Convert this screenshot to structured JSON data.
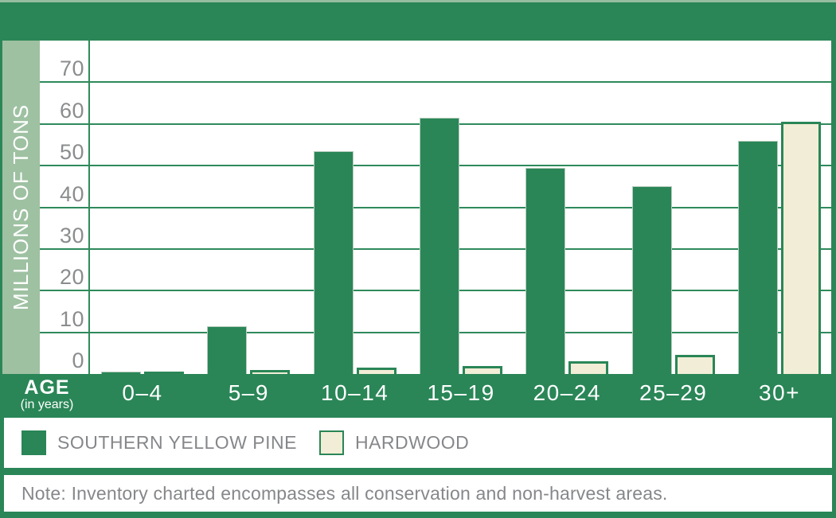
{
  "colors": {
    "dark_green": "#2a8657",
    "gridline_green": "#2f8a5c",
    "sage_band": "#9ec1a2",
    "cream": "#f2edd6",
    "gray_text": "#85878a",
    "white": "#ffffff"
  },
  "y_axis": {
    "label": "MILLIONS OF TONS",
    "ticks": [
      "0",
      "10",
      "20",
      "30",
      "40",
      "50",
      "60",
      "70"
    ]
  },
  "x_axis": {
    "label": "AGE",
    "sublabel": "(in years)"
  },
  "legend": [
    {
      "label": "SOUTHERN YELLOW PINE",
      "color": "#2a8657"
    },
    {
      "label": "HARDWOOD",
      "color": "#f2edd6"
    }
  ],
  "note": "Note: Inventory charted encompasses all conservation and non-harvest areas.",
  "chart_data": {
    "type": "bar",
    "categories": [
      "0–4",
      "5–9",
      "10–14",
      "15–19",
      "20–24",
      "25–29",
      "30+"
    ],
    "series": [
      {
        "name": "SOUTHERN YELLOW PINE",
        "color": "#2a8657",
        "values": [
          0.5,
          11.5,
          53.5,
          61.5,
          49.5,
          45,
          56
        ]
      },
      {
        "name": "HARDWOOD",
        "color": "#f2edd6",
        "values": [
          0.5,
          1,
          1.5,
          2,
          3,
          4.5,
          60.5
        ]
      }
    ],
    "title": "",
    "xlabel": "AGE (in years)",
    "ylabel": "MILLIONS OF TONS",
    "ylim": [
      0,
      80
    ],
    "yticks": [
      0,
      10,
      20,
      30,
      40,
      50,
      60,
      70
    ],
    "grid": true,
    "legend_position": "bottom"
  }
}
